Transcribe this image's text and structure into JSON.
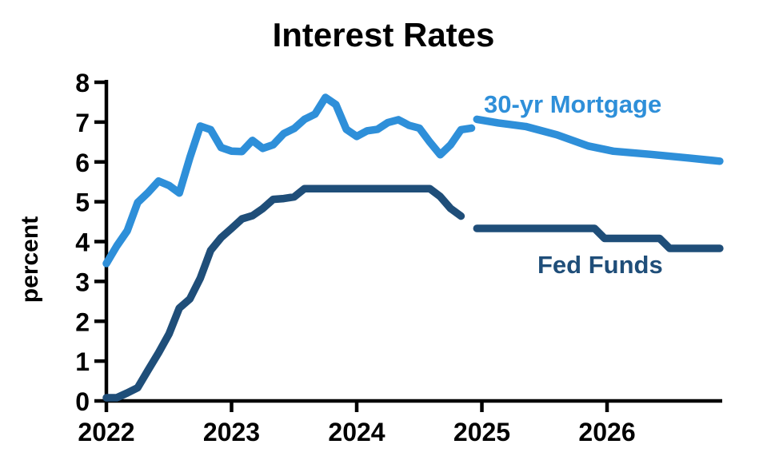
{
  "title": "Interest Rates",
  "labels": {
    "mortgage": "30-yr Mortgage",
    "fed_funds": "Fed Funds",
    "ylabel": "percent"
  },
  "colors": {
    "mortgage": "#2e8fd9",
    "fed_funds": "#1f4e79",
    "axis": "#000000"
  },
  "chart_data": {
    "type": "line",
    "title": "Interest Rates",
    "xlabel": "",
    "ylabel": "percent",
    "ylim": [
      0,
      8
    ],
    "yticks": [
      0,
      1,
      2,
      3,
      4,
      5,
      6,
      7,
      8
    ],
    "xlim": [
      2022.0,
      2026.92
    ],
    "xticks": [
      2022,
      2023,
      2024,
      2025,
      2026
    ],
    "grid": false,
    "legend_position": "inline-labels",
    "series": [
      {
        "name": "30-yr Mortgage (actual)",
        "color_key": "mortgage",
        "x": [
          2022.0,
          2022.083,
          2022.167,
          2022.25,
          2022.333,
          2022.417,
          2022.5,
          2022.583,
          2022.667,
          2022.75,
          2022.833,
          2022.917,
          2023.0,
          2023.083,
          2023.167,
          2023.25,
          2023.333,
          2023.417,
          2023.5,
          2023.583,
          2023.667,
          2023.75,
          2023.833,
          2023.917,
          2024.0,
          2024.083,
          2024.167,
          2024.25,
          2024.333,
          2024.417,
          2024.5,
          2024.583,
          2024.667,
          2024.75,
          2024.833,
          2024.917
        ],
        "values": [
          3.45,
          3.89,
          4.27,
          4.98,
          5.23,
          5.52,
          5.41,
          5.22,
          6.11,
          6.9,
          6.81,
          6.36,
          6.27,
          6.26,
          6.54,
          6.34,
          6.43,
          6.71,
          6.84,
          7.07,
          7.2,
          7.62,
          7.44,
          6.82,
          6.64,
          6.78,
          6.82,
          6.99,
          7.06,
          6.92,
          6.85,
          6.5,
          6.18,
          6.43,
          6.81,
          6.85
        ]
      },
      {
        "name": "30-yr Mortgage (forecast)",
        "color_key": "mortgage",
        "x": [
          2024.96,
          2025.13,
          2025.35,
          2025.6,
          2025.85,
          2026.05,
          2026.35,
          2026.65,
          2026.9
        ],
        "values": [
          7.07,
          6.98,
          6.89,
          6.68,
          6.4,
          6.27,
          6.19,
          6.1,
          6.02
        ]
      },
      {
        "name": "Fed Funds (actual)",
        "color_key": "fed_funds",
        "x": [
          2022.0,
          2022.083,
          2022.167,
          2022.25,
          2022.333,
          2022.417,
          2022.5,
          2022.583,
          2022.667,
          2022.75,
          2022.833,
          2022.917,
          2023.0,
          2023.083,
          2023.167,
          2023.25,
          2023.333,
          2023.417,
          2023.5,
          2023.583,
          2023.667,
          2023.75,
          2023.833,
          2023.917,
          2024.0,
          2024.083,
          2024.167,
          2024.25,
          2024.333,
          2024.417,
          2024.5,
          2024.583,
          2024.667,
          2024.75,
          2024.833
        ],
        "values": [
          0.08,
          0.08,
          0.2,
          0.33,
          0.77,
          1.21,
          1.68,
          2.33,
          2.56,
          3.08,
          3.78,
          4.1,
          4.33,
          4.57,
          4.65,
          4.83,
          5.06,
          5.08,
          5.12,
          5.33,
          5.33,
          5.33,
          5.33,
          5.33,
          5.33,
          5.33,
          5.33,
          5.33,
          5.33,
          5.33,
          5.33,
          5.33,
          5.13,
          4.83,
          4.64
        ]
      },
      {
        "name": "Fed Funds (forecast)",
        "color_key": "fed_funds",
        "x": [
          2024.96,
          2025.9,
          2025.98,
          2026.42,
          2026.5,
          2026.9
        ],
        "values": [
          4.33,
          4.33,
          4.08,
          4.08,
          3.83,
          3.83
        ]
      }
    ]
  }
}
